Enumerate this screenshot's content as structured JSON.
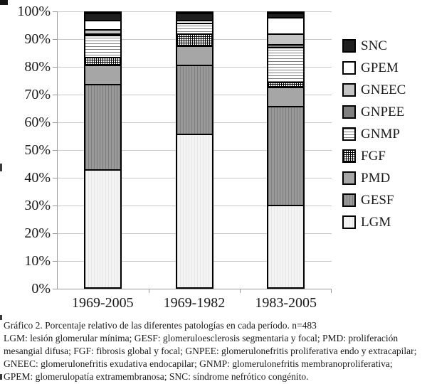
{
  "chart_data": {
    "type": "bar",
    "subtype": "stacked-100-percent",
    "categories": [
      "1969-2005",
      "1969-1982",
      "1983-2005"
    ],
    "series": [
      {
        "name": "LGM",
        "values": [
          43,
          56,
          30
        ],
        "fill": "#f2f2f2",
        "pattern": "vstripes-light"
      },
      {
        "name": "GESF",
        "values": [
          31,
          25,
          36
        ],
        "fill": "#959595",
        "pattern": "vstripes-gray"
      },
      {
        "name": "PMD",
        "values": [
          7,
          7,
          7
        ],
        "fill": "#a6a6a6",
        "pattern": "solid"
      },
      {
        "name": "FGF",
        "values": [
          3,
          4.5,
          2
        ],
        "fill": "#ffffff",
        "pattern": "grid-black"
      },
      {
        "name": "GNMP",
        "values": [
          8,
          4,
          12.5
        ],
        "fill": "#ffffff",
        "pattern": "hlines"
      },
      {
        "name": "GNPEE",
        "values": [
          0.5,
          0,
          1
        ],
        "fill": "#808080",
        "pattern": "solid"
      },
      {
        "name": "GNEEC",
        "values": [
          1.5,
          0,
          4
        ],
        "fill": "#c4c4c4",
        "pattern": "solid"
      },
      {
        "name": "GPEM",
        "values": [
          3.5,
          1,
          6
        ],
        "fill": "#ffffff",
        "pattern": "solid"
      },
      {
        "name": "SNC",
        "values": [
          2.5,
          2.5,
          1.5
        ],
        "fill": "#1f1f1f",
        "pattern": "solid"
      }
    ],
    "y_axis": {
      "ticks": [
        "100%",
        "90%",
        "80%",
        "70%",
        "60%",
        "50%",
        "40%",
        "30%",
        "20%",
        "10%",
        "0%"
      ],
      "min": 0,
      "max": 100,
      "grid": true
    },
    "legend": {
      "position": "right",
      "order_top_to_bottom": [
        "SNC",
        "GPEM",
        "GNEEC",
        "GNPEE",
        "GNMP",
        "FGF",
        "PMD",
        "GESF",
        "LGM"
      ]
    },
    "title": "Gráfico 2. Porcentaje relativo de las diferentes patologías en cada período. n=483"
  },
  "caption": {
    "line1": "Gráfico 2. Porcentaje relativo de las diferentes patologías en cada período. n=483",
    "body": "LGM: lesión glomerular mínima; GESF: glomeruloesclerosis segmentaria y focal; PMD: proliferación mesangial difusa; FGF: fibrosis global y focal; GNPEE: glomerulonefritis proliferativa endo y extracapilar; GNEEC: glomerulonefritis exudativa endocapilar; GNMP: glomerulonefritis membranoproliferativa; GPEM: glomerulopatía extramembranosa; SNC: síndrome nefrótico congénito."
  },
  "colors": {
    "grid": "#c9c9c9",
    "axis": "#9a9a9a",
    "text": "#1a1a1a",
    "bar_border": "#000000"
  }
}
